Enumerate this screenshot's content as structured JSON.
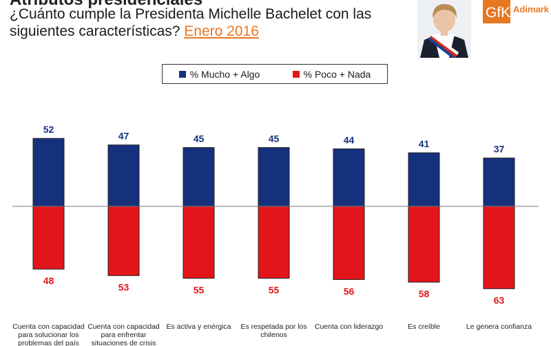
{
  "header": {
    "heading": "Atributos presidenciales",
    "question": "¿Cuánto cumple la Presidenta Michelle Bachelet con las siguientes características?",
    "period": "Enero 2016"
  },
  "logo": {
    "brand": "GfK",
    "name": "Adimark"
  },
  "colors": {
    "positive": "#15307d",
    "negative": "#e3151a",
    "accent": "#e87722"
  },
  "chart_data": {
    "type": "bar",
    "categories": [
      "Cuenta con capacidad para solucionar los problemas del país",
      "Cuenta con capacidad para enfrentar situaciones de crisis",
      "Es activa y enérgica",
      "Es respetada por los chilenos",
      "Cuenta con liderazgo",
      "Es creíble",
      "Le genera confianza"
    ],
    "series": [
      {
        "name": "% Mucho + Algo",
        "values": [
          52,
          47,
          45,
          45,
          44,
          41,
          37
        ]
      },
      {
        "name": "% Poco + Nada",
        "values": [
          48,
          53,
          55,
          55,
          56,
          58,
          63
        ]
      }
    ],
    "legend_position": "top-center",
    "grid": false
  }
}
